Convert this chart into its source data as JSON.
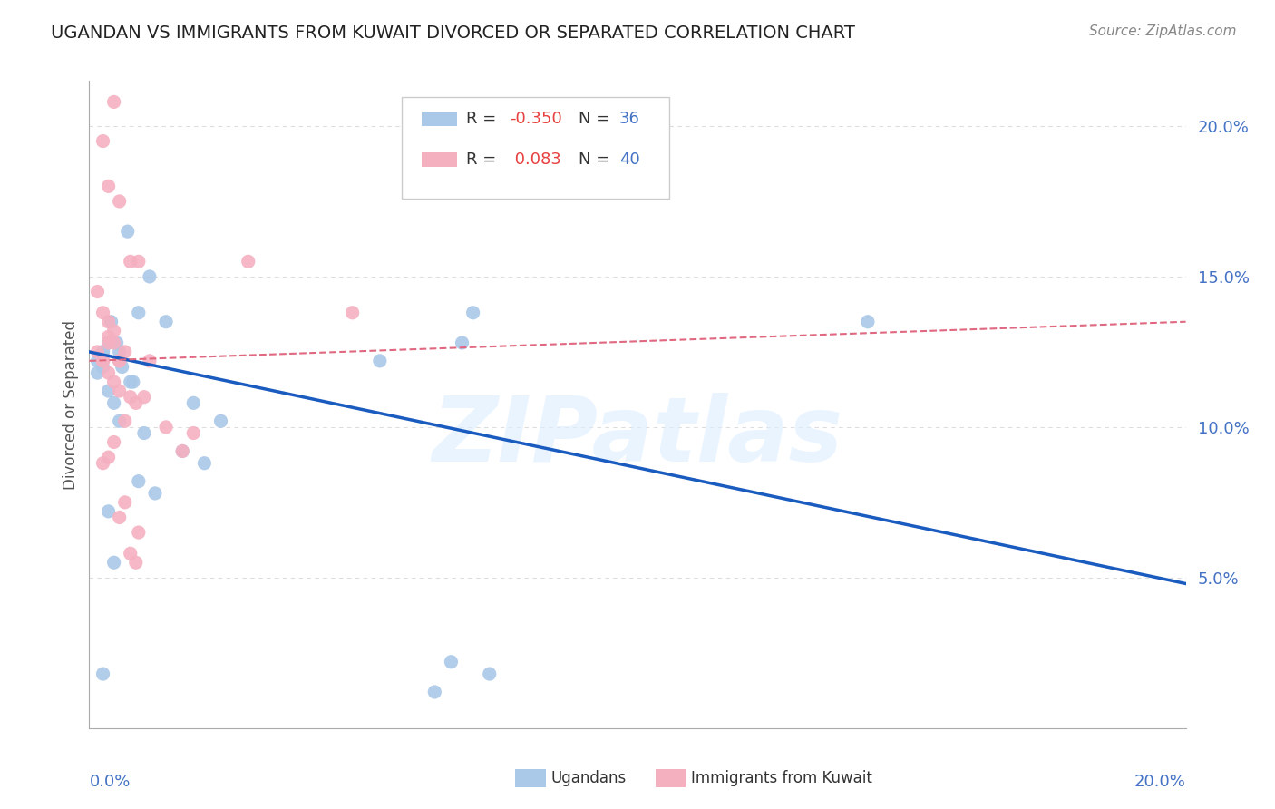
{
  "title": "UGANDAN VS IMMIGRANTS FROM KUWAIT DIVORCED OR SEPARATED CORRELATION CHART",
  "source": "Source: ZipAtlas.com",
  "ylabel": "Divorced or Separated",
  "ytick_values": [
    5.0,
    10.0,
    15.0,
    20.0
  ],
  "xmin": 0.0,
  "xmax": 20.0,
  "ymin": 0.0,
  "ymax": 21.5,
  "legend_r_blue": "-0.350",
  "legend_n_blue": "36",
  "legend_r_pink": "0.083",
  "legend_n_pink": "40",
  "blue_color": "#aac8e8",
  "pink_color": "#f5b0c0",
  "blue_line_color": "#1a5bbf",
  "pink_line_color": "#e06880",
  "blue_label": "Ugandans",
  "pink_label": "Immigrants from Kuwait",
  "watermark": "ZIPatlas",
  "blue_scatter_x": [
    0.4,
    0.9,
    0.7,
    1.1,
    0.25,
    0.35,
    0.15,
    0.5,
    0.6,
    0.8,
    1.4,
    0.25,
    0.45,
    0.55,
    1.0,
    1.9,
    1.7,
    2.4,
    2.1,
    0.9,
    1.2,
    0.35,
    0.45,
    0.25,
    0.75,
    0.15,
    0.25,
    5.3,
    6.8,
    6.3,
    7.3,
    6.6,
    0.35,
    0.55,
    7.0,
    14.2
  ],
  "blue_scatter_y": [
    13.5,
    13.8,
    16.5,
    15.0,
    12.5,
    12.8,
    12.2,
    12.8,
    12.0,
    11.5,
    13.5,
    12.0,
    10.8,
    10.2,
    9.8,
    10.8,
    9.2,
    10.2,
    8.8,
    8.2,
    7.8,
    7.2,
    5.5,
    1.8,
    11.5,
    11.8,
    12.5,
    12.2,
    12.8,
    1.2,
    1.8,
    2.2,
    11.2,
    12.5,
    13.8,
    13.5
  ],
  "pink_scatter_x": [
    0.25,
    0.45,
    0.35,
    0.55,
    0.75,
    0.9,
    0.15,
    0.25,
    0.45,
    0.35,
    0.55,
    0.65,
    0.25,
    0.35,
    0.45,
    0.55,
    0.75,
    0.85,
    1.0,
    0.65,
    1.4,
    1.9,
    1.7,
    2.9,
    0.35,
    0.25,
    0.45,
    0.55,
    0.15,
    0.35,
    0.25,
    0.45,
    0.65,
    0.55,
    0.9,
    0.75,
    0.85,
    1.1,
    0.35,
    4.8
  ],
  "pink_scatter_y": [
    19.5,
    20.8,
    18.0,
    17.5,
    15.5,
    15.5,
    14.5,
    13.8,
    13.2,
    13.5,
    12.2,
    12.5,
    12.2,
    11.8,
    11.5,
    11.2,
    11.0,
    10.8,
    11.0,
    10.2,
    10.0,
    9.8,
    9.2,
    15.5,
    9.0,
    8.8,
    12.8,
    12.2,
    12.5,
    13.0,
    12.2,
    9.5,
    7.5,
    7.0,
    6.5,
    5.8,
    5.5,
    12.2,
    12.8,
    13.8
  ],
  "blue_trend_y_start": 12.5,
  "blue_trend_y_end": 4.8,
  "pink_trend_y_start": 12.2,
  "pink_trend_y_end": 13.5,
  "grid_color": "#dddddd",
  "axis_color": "#aaaaaa",
  "tick_label_color": "#4472c4",
  "ylabel_color": "#555555",
  "title_color": "#222222",
  "title_fontsize": 14,
  "source_fontsize": 11,
  "tick_fontsize": 13,
  "watermark_color": "#ddeeff",
  "watermark_alpha": 0.6
}
